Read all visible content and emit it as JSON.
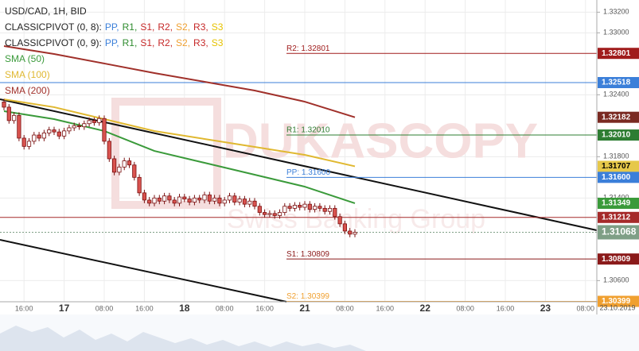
{
  "chart_data": {
    "type": "candlestick",
    "watermark": "DUKASCOPY",
    "watermark_sub": "Swiss Banking Group",
    "legend": {
      "symbol": "USD/CAD, 1H, BID",
      "pivots": [
        {
          "name": "CLASSICPIVOT (0, 8):",
          "items": [
            "PP,",
            "R1,",
            "S1,",
            "R2,",
            "S2,",
            "R3,",
            "S3"
          ]
        },
        {
          "name": "CLASSICPIVOT (0, 9):",
          "items": [
            "PP,",
            "R1,",
            "S1,",
            "R2,",
            "S2,",
            "R3,",
            "S3"
          ]
        }
      ],
      "item_colors": [
        "#3b7fd9",
        "#2e8b2e",
        "#c62828",
        "#c62828",
        "#f0a030",
        "#c62828",
        "#e6c200"
      ]
    },
    "ylim": [
      1.30395,
      1.33318
    ],
    "yticks": [
      {
        "value": 1.332,
        "label": "1.33200"
      },
      {
        "value": 1.33,
        "label": "1.33000"
      },
      {
        "value": 1.324,
        "label": "1.32400"
      },
      {
        "value": 1.318,
        "label": "1.31800"
      },
      {
        "value": 1.314,
        "label": "1.31400"
      },
      {
        "value": 1.306,
        "label": "1.30600"
      }
    ],
    "grid": true,
    "x_labels": [
      "16:00",
      "17",
      "08:00",
      "16:00",
      "18",
      "08:00",
      "16:00",
      "21",
      "08:00",
      "16:00",
      "22",
      "08:00",
      "16:00",
      "23",
      "08:00"
    ],
    "date_label": "23.10.2019",
    "up_color": "#ffffff",
    "down_color": "#d9534f",
    "candle_stroke": "#7a1010",
    "candles": [
      [
        1.3233,
        1.3236,
        1.3225,
        1.3228
      ],
      [
        1.3228,
        1.3231,
        1.3212,
        1.3215
      ],
      [
        1.3215,
        1.3223,
        1.3212,
        1.322
      ],
      [
        1.322,
        1.3223,
        1.3195,
        1.3198
      ],
      [
        1.3198,
        1.3201,
        1.3187,
        1.319
      ],
      [
        1.319,
        1.3198,
        1.3187,
        1.3195
      ],
      [
        1.3195,
        1.3204,
        1.3192,
        1.3201
      ],
      [
        1.3201,
        1.3204,
        1.3195,
        1.3198
      ],
      [
        1.3198,
        1.3206,
        1.3195,
        1.3203
      ],
      [
        1.3203,
        1.3209,
        1.32,
        1.3206
      ],
      [
        1.3206,
        1.3209,
        1.3201,
        1.3204
      ],
      [
        1.3204,
        1.3207,
        1.3197,
        1.32
      ],
      [
        1.32,
        1.3208,
        1.3197,
        1.3205
      ],
      [
        1.3205,
        1.3211,
        1.3202,
        1.3208
      ],
      [
        1.3208,
        1.3213,
        1.3205,
        1.321
      ],
      [
        1.321,
        1.3213,
        1.3206,
        1.3209
      ],
      [
        1.3209,
        1.3215,
        1.3206,
        1.3212
      ],
      [
        1.3212,
        1.3218,
        1.3209,
        1.3215
      ],
      [
        1.3215,
        1.3218,
        1.321,
        1.3213
      ],
      [
        1.3213,
        1.322,
        1.321,
        1.3217
      ],
      [
        1.3217,
        1.322,
        1.3192,
        1.3195
      ],
      [
        1.3195,
        1.3198,
        1.3175,
        1.3178
      ],
      [
        1.3178,
        1.3181,
        1.3162,
        1.3165
      ],
      [
        1.3165,
        1.3173,
        1.3162,
        1.317
      ],
      [
        1.317,
        1.3179,
        1.3167,
        1.3176
      ],
      [
        1.3176,
        1.3179,
        1.3169,
        1.3172
      ],
      [
        1.3172,
        1.3175,
        1.3157,
        1.316
      ],
      [
        1.316,
        1.3163,
        1.3142,
        1.3145
      ],
      [
        1.3145,
        1.3148,
        1.3135,
        1.3138
      ],
      [
        1.3138,
        1.3141,
        1.3132,
        1.3135
      ],
      [
        1.3135,
        1.3143,
        1.3132,
        1.314
      ],
      [
        1.314,
        1.3143,
        1.3134,
        1.3137
      ],
      [
        1.3137,
        1.3145,
        1.3134,
        1.3142
      ],
      [
        1.3142,
        1.3145,
        1.3135,
        1.3138
      ],
      [
        1.3138,
        1.3141,
        1.3132,
        1.3135
      ],
      [
        1.3135,
        1.3144,
        1.3132,
        1.3141
      ],
      [
        1.3141,
        1.3144,
        1.3136,
        1.3139
      ],
      [
        1.3139,
        1.3142,
        1.3133,
        1.3136
      ],
      [
        1.3136,
        1.3143,
        1.3133,
        1.314
      ],
      [
        1.314,
        1.3143,
        1.3135,
        1.3138
      ],
      [
        1.3138,
        1.3146,
        1.3135,
        1.3143
      ],
      [
        1.3143,
        1.3146,
        1.3134,
        1.3137
      ],
      [
        1.3137,
        1.3143,
        1.3134,
        1.314
      ],
      [
        1.314,
        1.3143,
        1.3132,
        1.3135
      ],
      [
        1.3135,
        1.3141,
        1.3132,
        1.3138
      ],
      [
        1.3138,
        1.3145,
        1.3135,
        1.3142
      ],
      [
        1.3142,
        1.3145,
        1.3133,
        1.3136
      ],
      [
        1.3136,
        1.3142,
        1.3133,
        1.3139
      ],
      [
        1.3139,
        1.3142,
        1.3131,
        1.3134
      ],
      [
        1.3134,
        1.314,
        1.3131,
        1.3137
      ],
      [
        1.3137,
        1.314,
        1.3129,
        1.3132
      ],
      [
        1.3132,
        1.3135,
        1.3123,
        1.3126
      ],
      [
        1.3126,
        1.3129,
        1.3121,
        1.3124
      ],
      [
        1.3124,
        1.3128,
        1.3121,
        1.3125
      ],
      [
        1.3125,
        1.3128,
        1.312,
        1.3123
      ],
      [
        1.3123,
        1.3129,
        1.312,
        1.3126
      ],
      [
        1.3126,
        1.3135,
        1.3123,
        1.3132
      ],
      [
        1.3132,
        1.3135,
        1.3127,
        1.313
      ],
      [
        1.313,
        1.3136,
        1.3127,
        1.3133
      ],
      [
        1.3133,
        1.3136,
        1.3128,
        1.3131
      ],
      [
        1.3131,
        1.3137,
        1.3128,
        1.3134
      ],
      [
        1.3134,
        1.3137,
        1.3126,
        1.3129
      ],
      [
        1.3129,
        1.3135,
        1.3126,
        1.3132
      ],
      [
        1.3132,
        1.3135,
        1.3127,
        1.313
      ],
      [
        1.313,
        1.3133,
        1.3124,
        1.3127
      ],
      [
        1.3127,
        1.3133,
        1.3124,
        1.313
      ],
      [
        1.313,
        1.3133,
        1.3119,
        1.3122
      ],
      [
        1.3122,
        1.3125,
        1.3112,
        1.3115
      ],
      [
        1.3115,
        1.3118,
        1.3105,
        1.3108
      ],
      [
        1.3108,
        1.3111,
        1.3102,
        1.3105
      ],
      [
        1.3105,
        1.31098,
        1.3102,
        1.31068
      ]
    ],
    "smas": [
      {
        "name": "SMA (50)",
        "color": "#3a9a3a",
        "x": [
          0,
          10,
          20,
          30,
          40,
          50,
          60,
          70
        ],
        "values": [
          1.32241,
          1.32164,
          1.32049,
          1.31856,
          1.31741,
          1.31626,
          1.3151,
          1.31349
        ]
      },
      {
        "name": "SMA (100)",
        "color": "#e0b830",
        "x": [
          0,
          10,
          20,
          30,
          40,
          50,
          60,
          70
        ],
        "values": [
          1.32356,
          1.3228,
          1.32164,
          1.32049,
          1.31972,
          1.31895,
          1.31818,
          1.31707
        ]
      },
      {
        "name": "SMA (200)",
        "color": "#a0302a",
        "x": [
          0,
          10,
          20,
          30,
          40,
          50,
          60,
          70
        ],
        "values": [
          1.32872,
          1.32795,
          1.32703,
          1.3261,
          1.32526,
          1.32441,
          1.32333,
          1.32182
        ]
      }
    ],
    "levels": [
      {
        "value": 1.32801,
        "label": "1.32801",
        "name": "R2: 1.32801",
        "color": "#a01c1c",
        "line": "pivot"
      },
      {
        "value": 1.32518,
        "label": "1.32518",
        "color": "#3b7fd9",
        "line": "full"
      },
      {
        "value": 1.32182,
        "label": "1.32182",
        "color": "#7a2a22",
        "line": "none"
      },
      {
        "value": 1.3201,
        "label": "1.32010",
        "name": "R1: 1.32010",
        "color": "#2e7d32",
        "line": "pivot"
      },
      {
        "value": 1.31707,
        "label": "1.31707",
        "color": "#e6c84a",
        "line": "none",
        "dark_text": true
      },
      {
        "value": 1.316,
        "label": "1.31600",
        "name": "PP: 1.31600",
        "color": "#3b7fd9",
        "line": "pivot"
      },
      {
        "value": 1.31349,
        "label": "1.31349",
        "color": "#3a9a3a",
        "line": "none"
      },
      {
        "value": 1.31212,
        "label": "1.31212",
        "color": "#a52a2a",
        "line": "full"
      },
      {
        "value": 1.31068,
        "label": "1.31068",
        "color": "#7f9f86",
        "line": "dashed"
      },
      {
        "value": 1.30809,
        "label": "1.30809",
        "name": "S1: 1.30809",
        "color": "#8b1a1a",
        "line": "pivot"
      },
      {
        "value": 1.30399,
        "label": "1.30399",
        "name": "S2: 1.30399",
        "color": "#f0a030",
        "line": "pivot"
      }
    ]
  }
}
